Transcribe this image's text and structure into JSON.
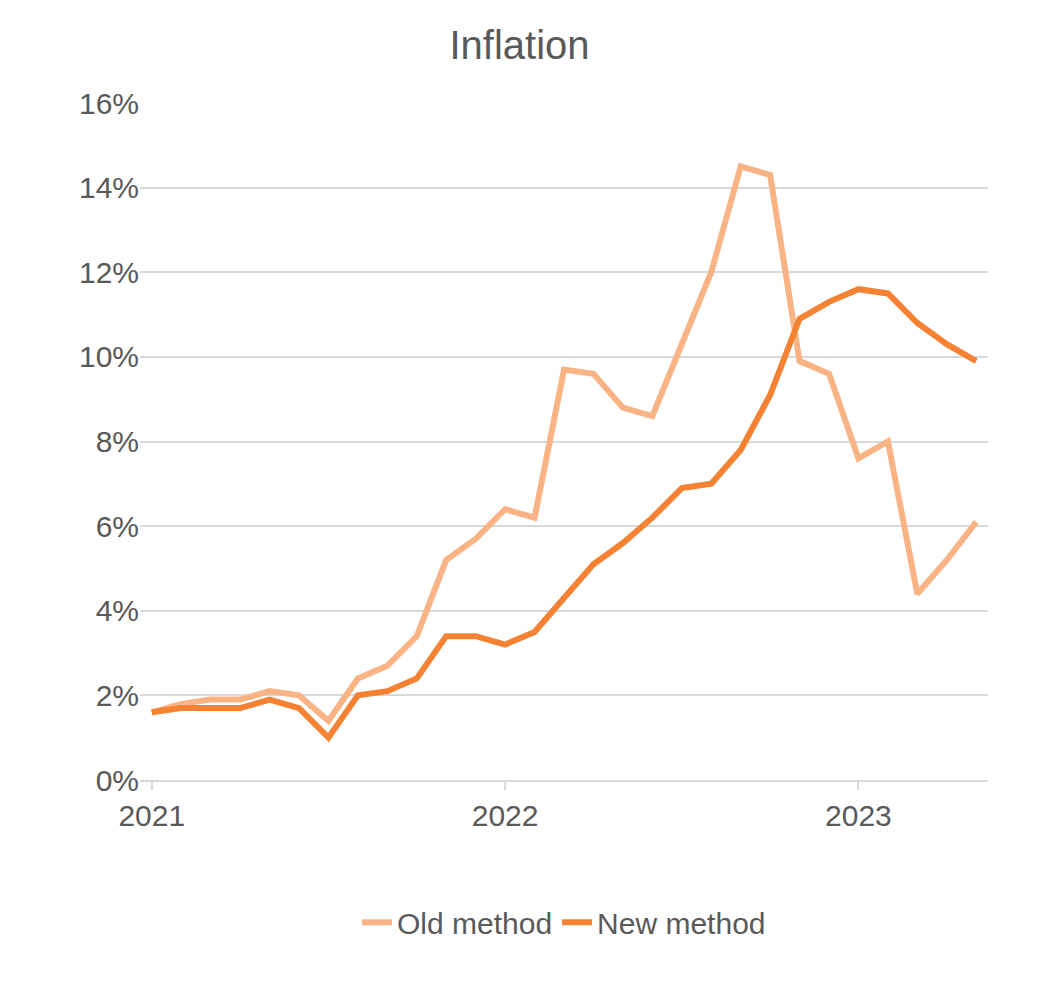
{
  "chart_data": {
    "type": "line",
    "title": "Inflation",
    "categories": [
      "2021",
      null,
      null,
      null,
      null,
      null,
      null,
      null,
      null,
      null,
      null,
      null,
      "2022",
      null,
      null,
      null,
      null,
      null,
      null,
      null,
      null,
      null,
      null,
      null,
      "2023",
      null,
      null,
      null,
      null
    ],
    "series": [
      {
        "name": "Old method",
        "color": "#f9b384",
        "values": [
          1.6,
          1.8,
          1.9,
          1.9,
          2.1,
          2.0,
          1.4,
          2.4,
          2.7,
          3.4,
          5.2,
          5.7,
          6.4,
          6.2,
          9.7,
          9.6,
          8.8,
          8.6,
          10.3,
          12.0,
          14.5,
          14.3,
          9.9,
          9.6,
          7.6,
          8.0,
          4.4,
          5.2,
          6.1
        ]
      },
      {
        "name": "New method",
        "color": "#f58232",
        "values": [
          1.6,
          1.7,
          1.7,
          1.7,
          1.9,
          1.7,
          1.0,
          2.0,
          2.1,
          2.4,
          3.4,
          3.4,
          3.2,
          3.5,
          4.3,
          5.1,
          5.6,
          6.2,
          6.9,
          7.0,
          7.8,
          9.1,
          10.9,
          11.3,
          11.6,
          11.5,
          10.8,
          10.3,
          9.9
        ]
      }
    ],
    "ylim": [
      0,
      16
    ],
    "yticks": [
      {
        "value": 0,
        "label": "0%"
      },
      {
        "value": 2,
        "label": "2%"
      },
      {
        "value": 4,
        "label": "4%"
      },
      {
        "value": 6,
        "label": "6%"
      },
      {
        "value": 8,
        "label": "8%"
      },
      {
        "value": 10,
        "label": "10%"
      },
      {
        "value": 12,
        "label": "12%"
      },
      {
        "value": 14,
        "label": "14%"
      },
      {
        "value": 16,
        "label": "16%"
      }
    ],
    "grid": true,
    "legend": "bottom"
  }
}
